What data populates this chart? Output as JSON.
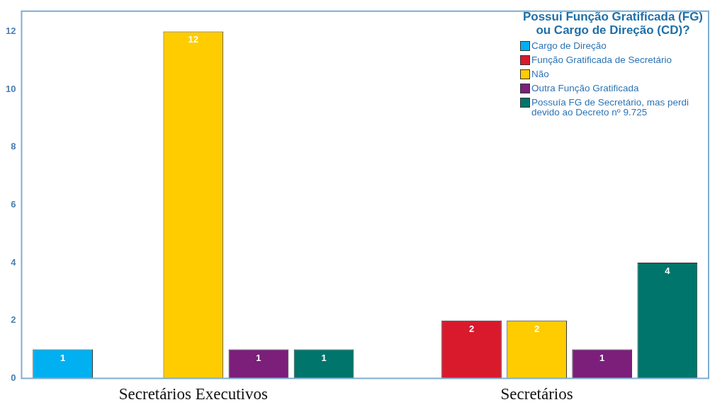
{
  "chart_data": {
    "type": "bar",
    "legend_title": "Possui Função Gratificada (FG) ou Cargo de Direção (CD)?",
    "categories": [
      "Secretários Executivos",
      "Secretários"
    ],
    "series": [
      {
        "name": "Cargo de Direção",
        "color": "#00b0f0",
        "values": [
          1,
          null
        ]
      },
      {
        "name": "Função Gratificada de Secretário",
        "color": "#d9192c",
        "values": [
          null,
          2
        ]
      },
      {
        "name": "Não",
        "color": "#ffcc00",
        "values": [
          12,
          2
        ]
      },
      {
        "name": "Outra Função Gratificada",
        "color": "#7b1f7b",
        "values": [
          1,
          1
        ]
      },
      {
        "name": "Possuía FG de Secretário, mas perdi devido ao Decreto nº 9.725",
        "color": "#00756b",
        "values": [
          1,
          4
        ]
      }
    ],
    "ylim": [
      0,
      12.7
    ],
    "yticks": [
      0,
      2,
      4,
      6,
      8,
      10,
      12
    ],
    "grid": false,
    "legend": "top right",
    "data_labels": true
  }
}
